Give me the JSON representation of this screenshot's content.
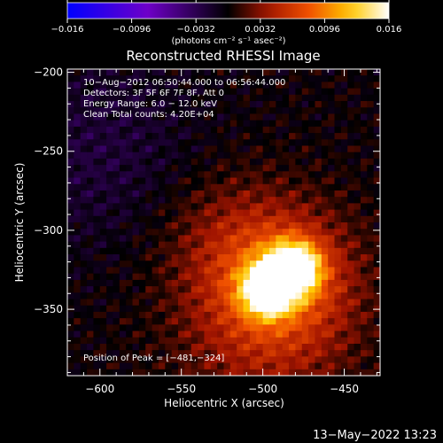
{
  "colorbar": {
    "ticks": [
      "−0.016",
      "−0.0096",
      "−0.0032",
      "0.0032",
      "0.0096",
      "0.016"
    ],
    "units": "(photons cm⁻² s⁻¹ asec⁻²)",
    "range": [
      -0.016,
      0.016
    ]
  },
  "chart_data": {
    "type": "heatmap",
    "title": "Reconstructed RHESSI Image",
    "xlabel": "Heliocentric X (arcsec)",
    "ylabel": "Heliocentric Y (arcsec)",
    "xlim": [
      -620,
      -428
    ],
    "ylim": [
      -392,
      -198
    ],
    "xticks": [
      -600,
      -550,
      -500,
      -450
    ],
    "yticks": [
      -200,
      -250,
      -300,
      -350
    ],
    "xtick_labels": [
      "−600",
      "−550",
      "−500",
      "−450"
    ],
    "ytick_labels": [
      "−200",
      "−250",
      "−300",
      "−350"
    ],
    "info_lines": [
      "10−Aug−2012 06:50:44.000 to 06:56:44.000",
      "Detectors: 3F 5F 6F 7F 8F, Att 0",
      "Energy Range: 6.0 − 12.0 keV",
      "Clean     Total counts: 4.20E+04"
    ],
    "peak_label": "Position of Peak = [−481,−324]",
    "peak": [
      -481,
      -324
    ],
    "sources": [
      {
        "x": -481,
        "y": -324,
        "sigma": 11,
        "amp": 0.016
      },
      {
        "x": -497,
        "y": -338,
        "sigma": 11,
        "amp": 0.0145
      },
      {
        "x": -489,
        "y": -330,
        "sigma": 30,
        "amp": 0.0068
      },
      {
        "x": -500,
        "y": -365,
        "sigma": 38,
        "amp": 0.0035
      },
      {
        "x": -525,
        "y": -300,
        "sigma": 30,
        "amp": 0.0022
      },
      {
        "x": -600,
        "y": -250,
        "sigma": 45,
        "amp": -0.0022
      }
    ]
  },
  "timestamp": "13−May−2022 13:23"
}
